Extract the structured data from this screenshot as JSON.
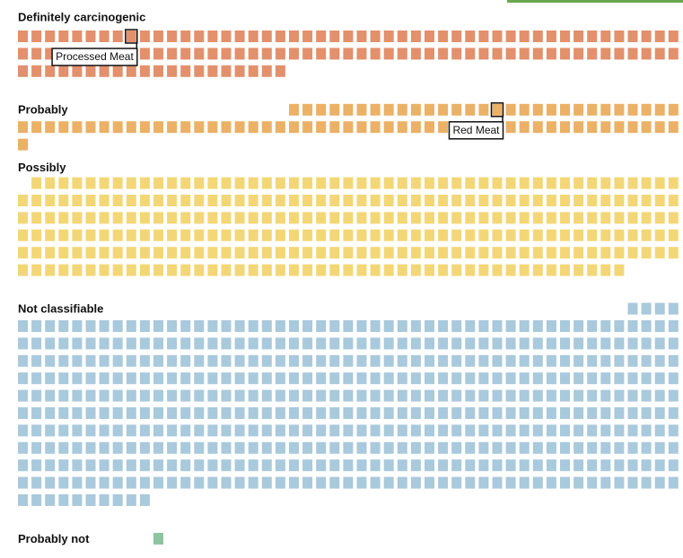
{
  "chart_data": {
    "type": "waffle",
    "categories": [
      "Definitely carcinogenic",
      "Probably",
      "Possibly",
      "Not classifiable",
      "Probably not"
    ],
    "values": [
      118,
      79,
      289,
      504,
      1
    ],
    "colors": [
      "#e3906c",
      "#ebb166",
      "#f3d777",
      "#a9c9dc",
      "#8dc5a0"
    ],
    "annotations": [
      "Processed Meat",
      "Red Meat"
    ]
  }
}
